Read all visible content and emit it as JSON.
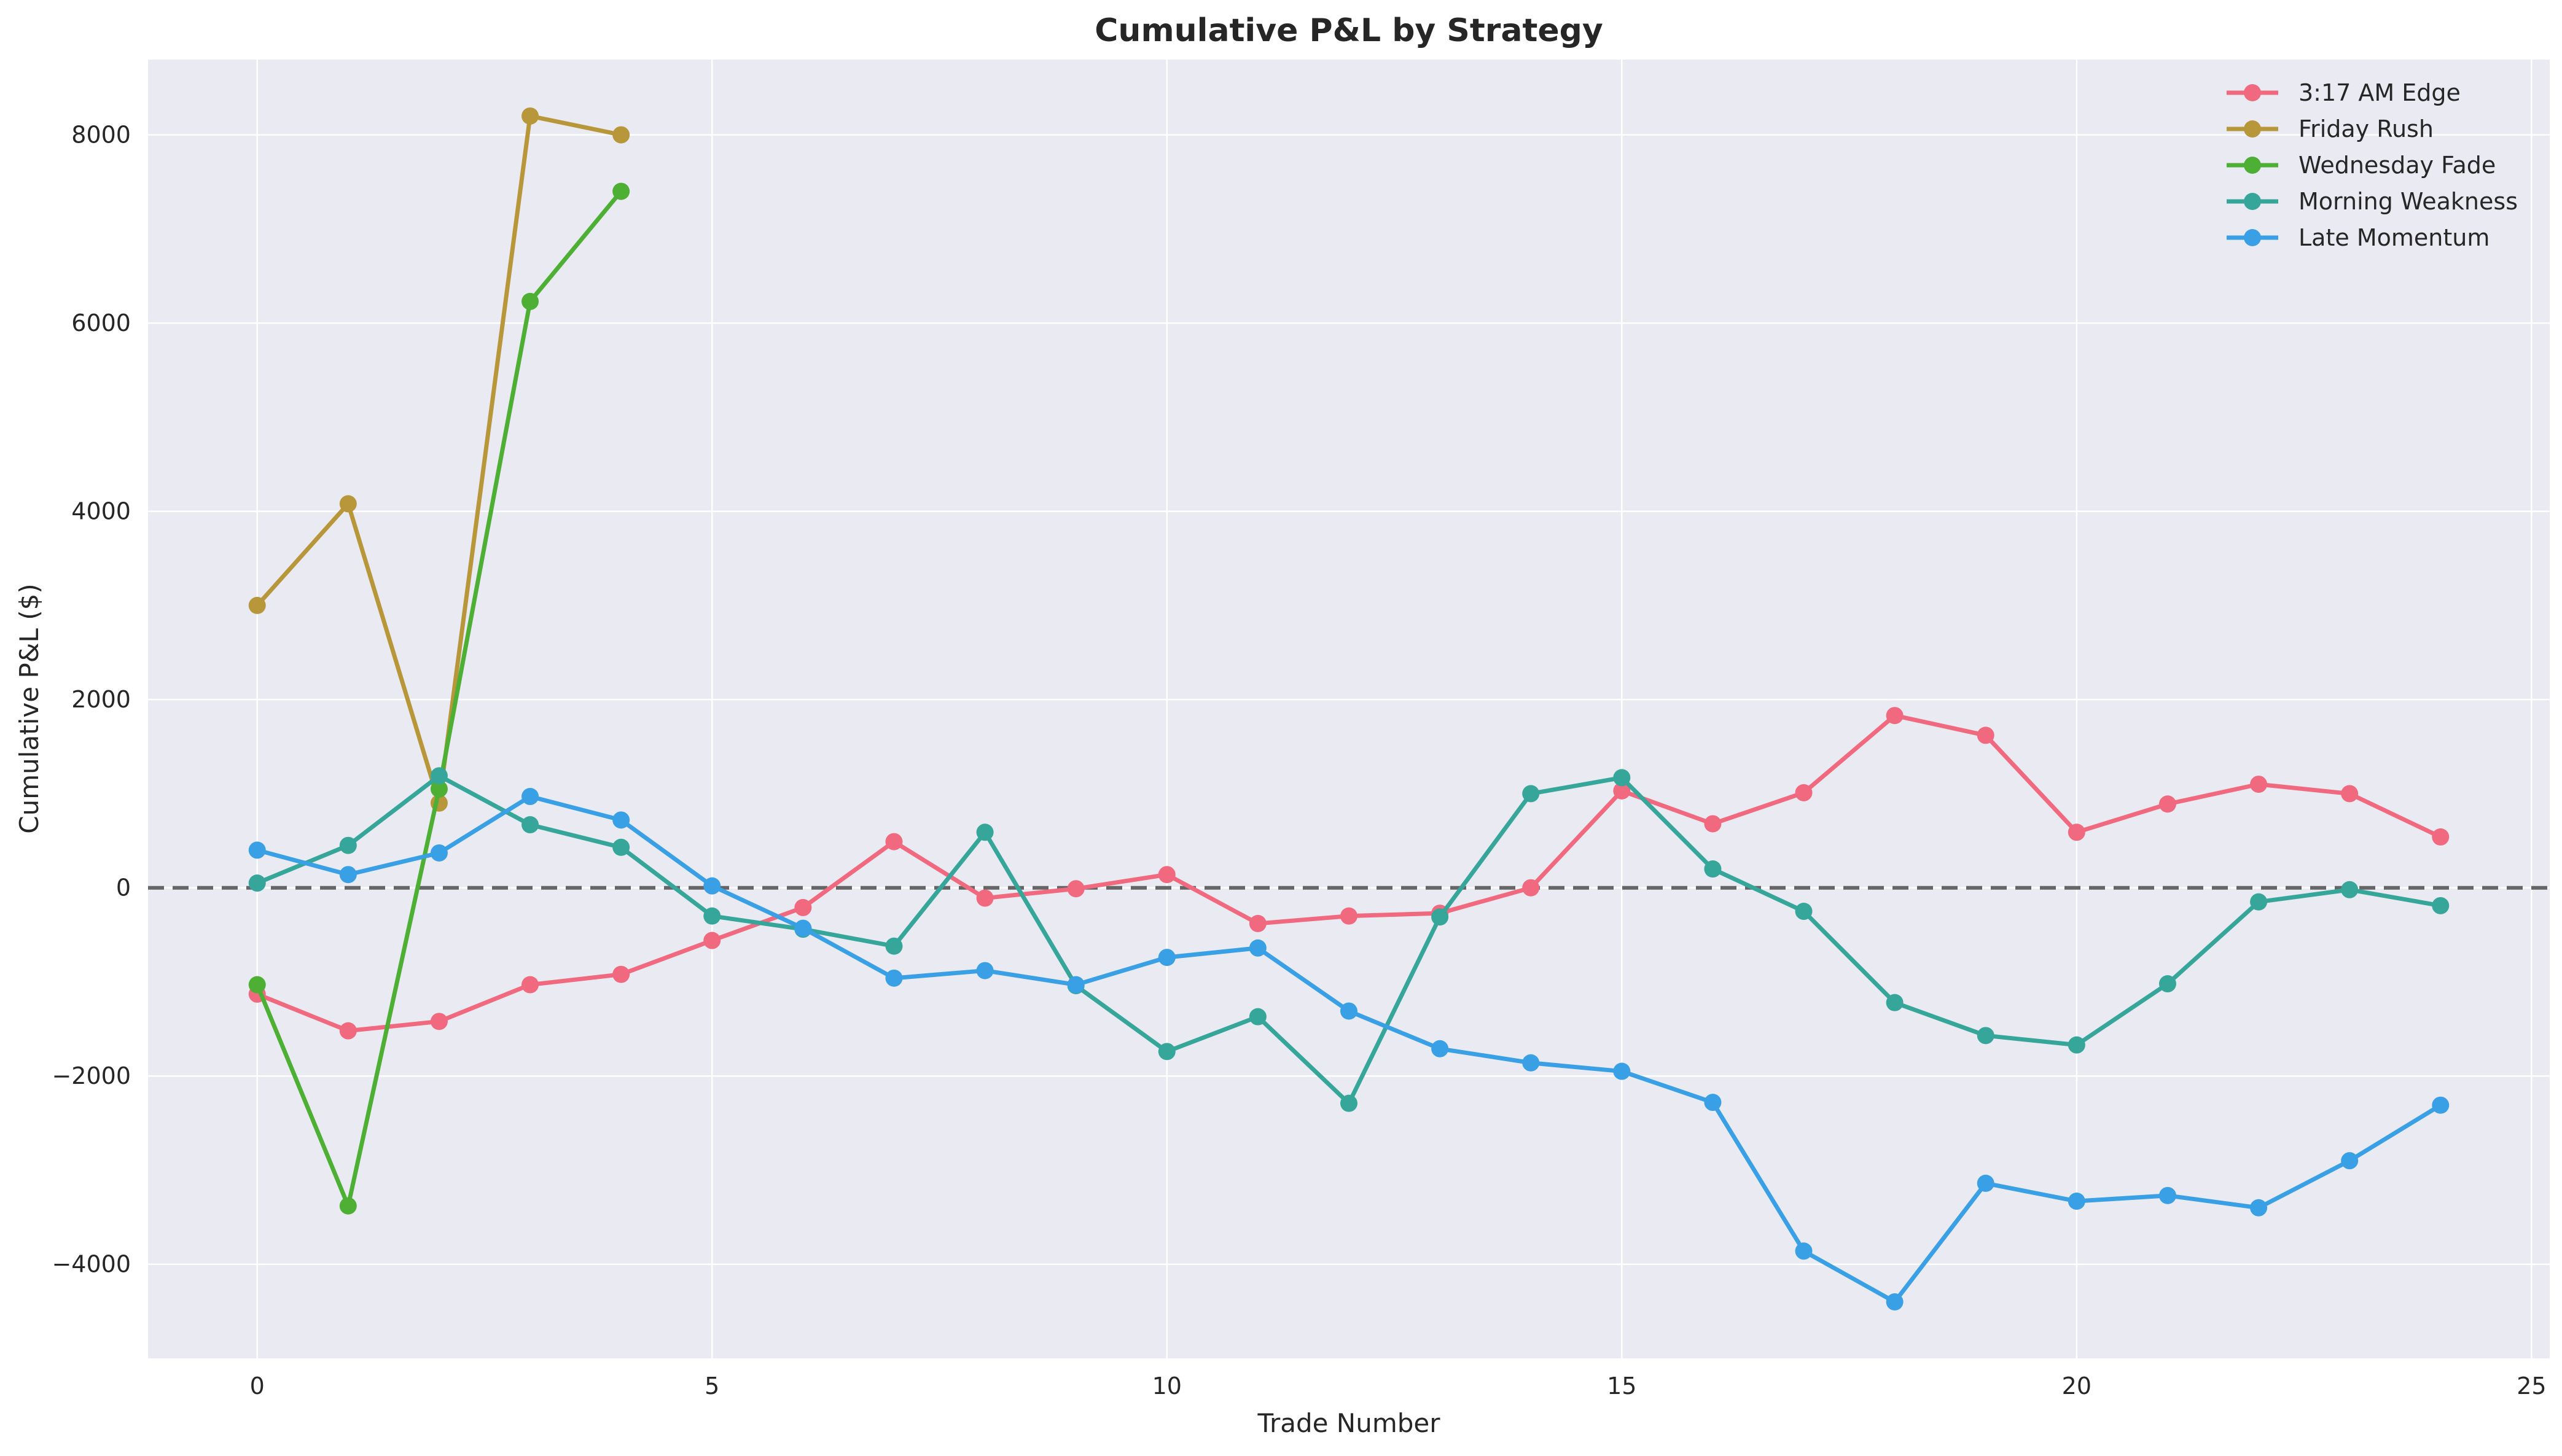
{
  "chart_data": {
    "type": "line",
    "title": "Cumulative P&L by Strategy",
    "xlabel": "Trade Number",
    "ylabel": "Cumulative P&L ($)",
    "xlim": [
      -1.2,
      25.2
    ],
    "ylim": [
      -5000,
      8800
    ],
    "x_ticks": [
      0,
      5,
      10,
      15,
      20,
      25
    ],
    "y_ticks": [
      -4000,
      -2000,
      0,
      2000,
      4000,
      6000,
      8000
    ],
    "grid": true,
    "legend_position": "top-right",
    "reference_line": {
      "y": 0,
      "style": "dashed"
    },
    "series": [
      {
        "name": "3:17 AM Edge",
        "color": "#f0697e",
        "x": [
          0,
          1,
          2,
          3,
          4,
          5,
          6,
          7,
          8,
          9,
          10,
          11,
          12,
          13,
          14,
          15,
          16,
          17,
          18,
          19,
          20,
          21,
          22,
          23,
          24
        ],
        "values": [
          -1130,
          -1520,
          -1420,
          -1030,
          -920,
          -560,
          -210,
          490,
          -110,
          -10,
          140,
          -380,
          -300,
          -270,
          0,
          1030,
          680,
          1010,
          1830,
          1620,
          590,
          890,
          1100,
          1000,
          540
        ]
      },
      {
        "name": "Friday Rush",
        "color": "#b8963a",
        "x": [
          0,
          1,
          2,
          3,
          4
        ],
        "values": [
          3000,
          4080,
          900,
          8200,
          8000
        ]
      },
      {
        "name": "Wednesday Fade",
        "color": "#4daf33",
        "x": [
          0,
          1,
          2,
          3,
          4
        ],
        "values": [
          -1030,
          -3380,
          1050,
          6230,
          7400
        ]
      },
      {
        "name": "Morning Weakness",
        "color": "#36a69a",
        "x": [
          0,
          1,
          2,
          3,
          4,
          5,
          6,
          7,
          8,
          9,
          10,
          11,
          12,
          13,
          14,
          15,
          16,
          17,
          18,
          19,
          20,
          21,
          22,
          23,
          24
        ],
        "values": [
          50,
          450,
          1190,
          670,
          430,
          -300,
          -440,
          -620,
          590,
          -1040,
          -1740,
          -1370,
          -2290,
          -310,
          1000,
          1170,
          200,
          -250,
          -1220,
          -1570,
          -1670,
          -1020,
          -150,
          -20,
          -190
        ]
      },
      {
        "name": "Late Momentum",
        "color": "#3aa0e5",
        "x": [
          0,
          1,
          2,
          3,
          4,
          5,
          6,
          7,
          8,
          9,
          10,
          11,
          12,
          13,
          14,
          15,
          16,
          17,
          18,
          19,
          20,
          21,
          22,
          23,
          24
        ],
        "values": [
          400,
          140,
          370,
          970,
          720,
          20,
          -430,
          -960,
          -880,
          -1030,
          -740,
          -640,
          -1310,
          -1710,
          -1860,
          -1950,
          -2280,
          -3860,
          -4400,
          -3140,
          -3330,
          -3270,
          -3400,
          -2900,
          -2310
        ]
      }
    ]
  }
}
